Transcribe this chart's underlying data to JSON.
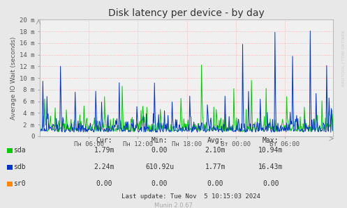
{
  "title": "Disk latency per device - by day",
  "ylabel": "Average IO Wait (seconds)",
  "background_color": "#e8e8e8",
  "plot_background": "#f0f0f0",
  "grid_color": "#ff9999",
  "x_ticks_labels": [
    "Пн 06:00",
    "Пн 12:00",
    "Пн 18:00",
    "Вт 00:00",
    "Вт 06:00"
  ],
  "y_ticks_labels": [
    "0",
    "2 m",
    "4 m",
    "6 m",
    "8 m",
    "10 m",
    "12 m",
    "14 m",
    "16 m",
    "18 m",
    "20 m"
  ],
  "y_max": 20,
  "legend": [
    {
      "label": "sda",
      "color": "#00cc00"
    },
    {
      "label": "sdb",
      "color": "#0033cc"
    },
    {
      "label": "sr0",
      "color": "#ff8800"
    }
  ],
  "stats_headers": [
    "Cur:",
    "Min:",
    "Avg:",
    "Max:"
  ],
  "stats": [
    {
      "name": "sda",
      "cur": "1.79m",
      "min": "0.00",
      "avg": "2.10m",
      "max": "10.94m"
    },
    {
      "name": "sdb",
      "cur": "2.24m",
      "min": "610.92u",
      "avg": "1.77m",
      "max": "16.43m"
    },
    {
      "name": "sr0",
      "cur": "0.00",
      "min": "0.00",
      "avg": "0.00",
      "max": "0.00"
    }
  ],
  "last_update": "Last update: Tue Nov  5 10:15:03 2024",
  "munin_version": "Munin 2.0.67",
  "watermark": "RRDTOOL / TOBI OETIKER",
  "num_points": 500,
  "figsize": [
    4.97,
    2.99
  ],
  "dpi": 100
}
